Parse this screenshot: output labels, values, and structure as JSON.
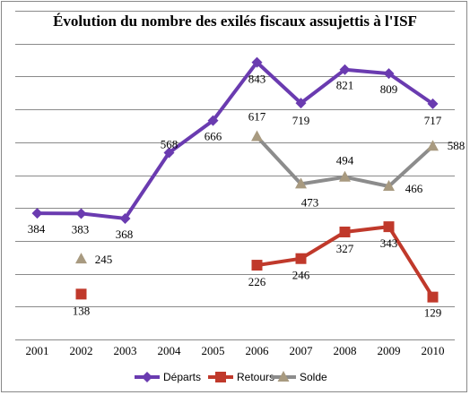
{
  "chart_data": {
    "type": "line",
    "title": "Évolution du nombre des exilés fiscaux assujettis à l'ISF",
    "xlabel": "",
    "ylabel": "",
    "categories": [
      "2001",
      "2002",
      "2003",
      "2004",
      "2005",
      "2006",
      "2007",
      "2008",
      "2009",
      "2010"
    ],
    "ylim": [
      0,
      1000
    ],
    "grid": true,
    "legend_position": "bottom",
    "series": [
      {
        "name": "Départs",
        "color": "#6a3bb0",
        "marker": "diamond",
        "values": [
          384,
          383,
          368,
          568,
          666,
          843,
          719,
          821,
          809,
          717
        ],
        "labels": [
          "384",
          "383",
          "368",
          "568",
          "666",
          "843",
          "719",
          "821",
          "809",
          "717"
        ]
      },
      {
        "name": "Retours",
        "color": "#c0392b",
        "marker": "square",
        "values": [
          null,
          138,
          null,
          null,
          null,
          226,
          246,
          327,
          343,
          129
        ],
        "labels": [
          null,
          "138",
          null,
          null,
          null,
          "226",
          "246",
          "327",
          "343",
          "129"
        ]
      },
      {
        "name": "Solde",
        "color": "#8c8c8c",
        "marker": "triangle",
        "values": [
          null,
          245,
          null,
          null,
          null,
          617,
          473,
          494,
          466,
          588
        ],
        "labels": [
          null,
          "245",
          null,
          null,
          null,
          "617",
          "473",
          "494",
          "466",
          "588"
        ]
      }
    ]
  }
}
